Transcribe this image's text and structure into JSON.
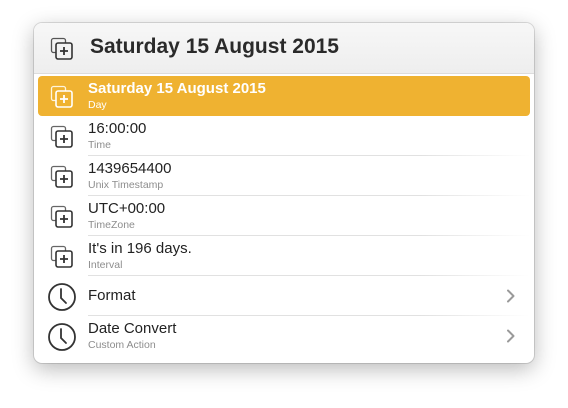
{
  "header": {
    "title": "Saturday 15 August 2015",
    "icon": "copy-add-icon"
  },
  "results": [
    {
      "title": "Saturday 15 August 2015",
      "subtitle": "Day",
      "icon": "copy-add-icon",
      "selected": true
    },
    {
      "title": "16:00:00",
      "subtitle": "Time",
      "icon": "copy-add-icon"
    },
    {
      "title": "1439654400",
      "subtitle": "Unix Timestamp",
      "icon": "copy-add-icon"
    },
    {
      "title": "UTC+00:00",
      "subtitle": "TimeZone",
      "icon": "copy-add-icon"
    },
    {
      "title": "It's in 196 days.",
      "subtitle": "Interval",
      "icon": "copy-add-icon"
    },
    {
      "title": "Format",
      "subtitle": "",
      "icon": "clock-icon",
      "action": "chevron-right-icon"
    },
    {
      "title": "Date Convert",
      "subtitle": "Custom Action",
      "icon": "clock-icon",
      "action": "chevron-right-icon"
    }
  ],
  "colors": {
    "selection": "#efb231",
    "header_bg": "#f2f2f2",
    "subtitle": "#8d8d8d"
  }
}
